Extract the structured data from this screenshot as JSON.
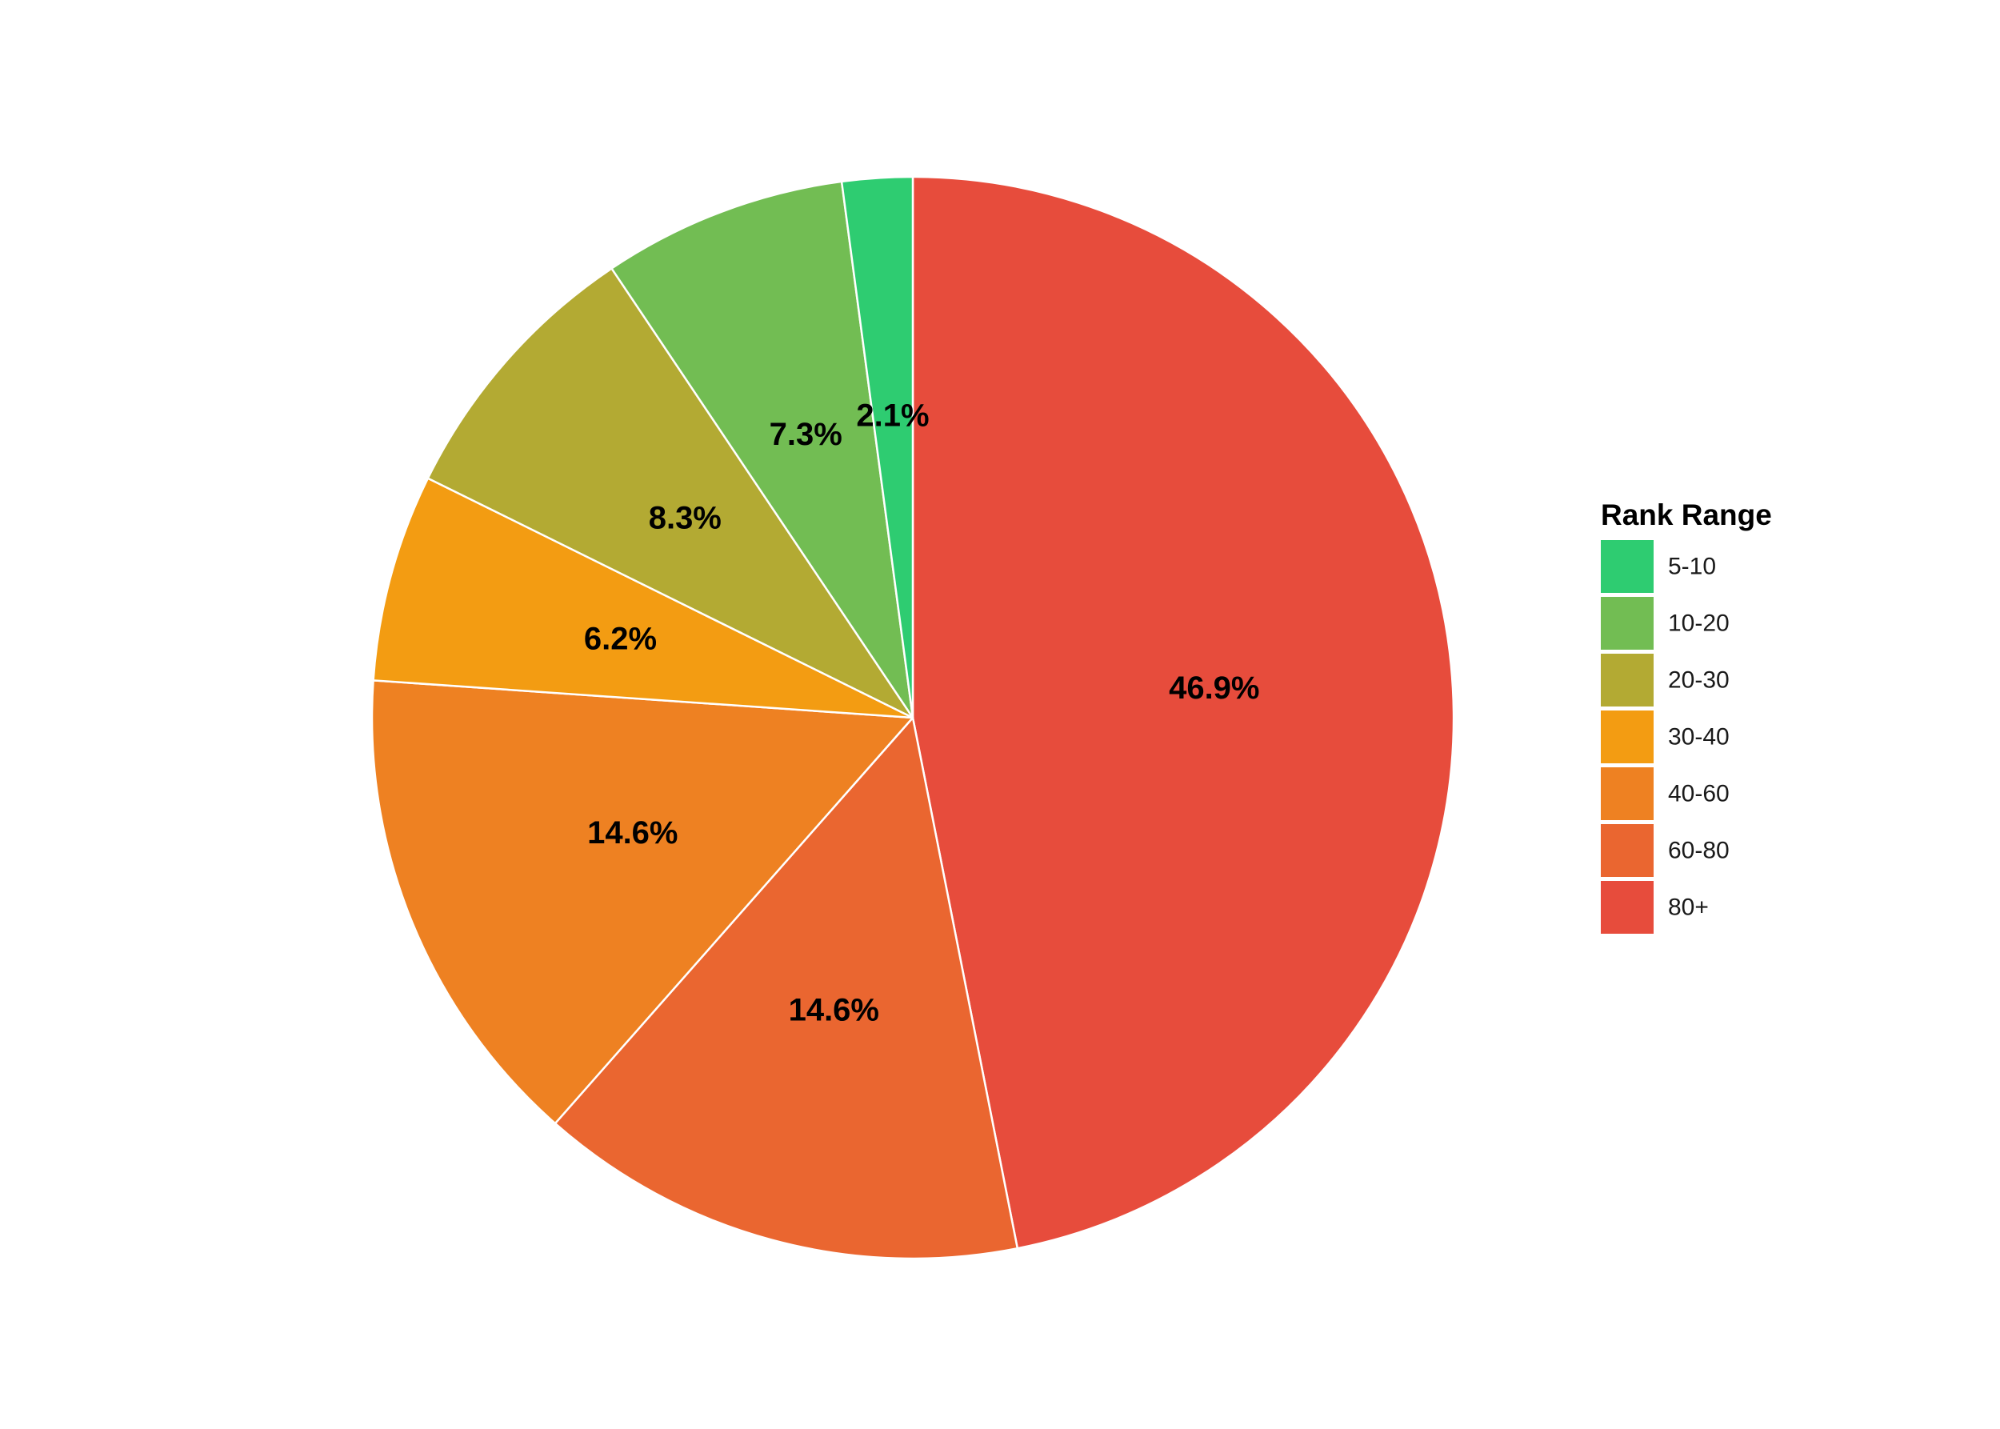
{
  "chart_data": {
    "type": "pie",
    "title": "",
    "legend": {
      "title": "Rank Range",
      "position": "right"
    },
    "categories": [
      "5-10",
      "10-20",
      "20-30",
      "30-40",
      "40-60",
      "60-80",
      "80+"
    ],
    "values": [
      2.1,
      7.3,
      8.3,
      6.2,
      14.6,
      14.6,
      46.9
    ],
    "labels": [
      "2.1%",
      "7.3%",
      "8.3%",
      "6.2%",
      "14.6%",
      "14.6%",
      "46.9%"
    ],
    "colors": [
      "#2ecc71",
      "#72bd53",
      "#b3aa33",
      "#f39c12",
      "#ee8122",
      "#ea6630",
      "#e74c3c"
    ],
    "start_angle": "12 o'clock",
    "direction": "counter-clockwise"
  }
}
